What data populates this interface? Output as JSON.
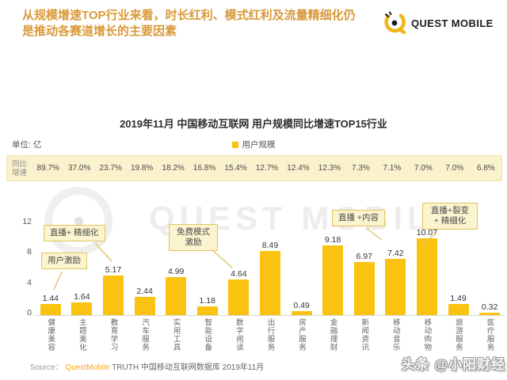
{
  "header": {
    "title_line1": "从规模增速TOP行业来看，时长红利、模式红利及流量精细化仍",
    "title_line2": "是推动各赛道增长的主要因素",
    "logo_text": "QUEST MOBILE"
  },
  "watermark_text": "QUEST MOBILE",
  "chart": {
    "unit_label": "单位: 亿",
    "legend_label": "用户规模",
    "growth_row_label": "同比增速",
    "bar_color": "#FBC311"
  },
  "chart_data": {
    "type": "bar",
    "title": "2019年11月 中国移动互联网 用户规模同比增速TOP15行业",
    "unit": "亿",
    "legend": [
      "用户规模"
    ],
    "categories": [
      "健康美容",
      "主题美化",
      "教育学习",
      "汽车服务",
      "实用工具",
      "智能设备",
      "数字阅读",
      "出行服务",
      "房产服务",
      "金融理财",
      "新闻资讯",
      "移动音乐",
      "移动购物",
      "旅游服务",
      "医疗服务"
    ],
    "values": [
      1.44,
      1.64,
      5.17,
      2.44,
      4.99,
      1.18,
      4.64,
      8.49,
      0.49,
      9.18,
      6.97,
      7.42,
      10.07,
      1.49,
      0.32
    ],
    "growth_rates_pct": [
      89.7,
      37.0,
      23.7,
      19.8,
      18.2,
      16.8,
      15.4,
      12.7,
      12.4,
      12.3,
      7.3,
      7.1,
      7.0,
      7.0,
      6.8
    ],
    "ylabel": "",
    "xlabel": "",
    "ylim": [
      0,
      12
    ],
    "yticks": [
      0,
      4,
      8,
      12
    ],
    "grid": false,
    "legend_position": "top-center",
    "annotations": [
      {
        "text": "用户激励",
        "target": "健康美容"
      },
      {
        "text": "直播+ 精细化",
        "target": "教育学习"
      },
      {
        "text": "免费模式 激励",
        "target": "数字阅读"
      },
      {
        "text": "直播 +内容",
        "target": "移动音乐"
      },
      {
        "text": "直播+裂变 + 精细化",
        "target": "移动购物"
      }
    ]
  },
  "footer": {
    "source_prefix": "Source：",
    "source_brand": "QuestMobile",
    "source_rest": " TRUTH 中国移动互联网数据库 2019年11月",
    "byline_watermark": "头条 @小阳财经"
  }
}
